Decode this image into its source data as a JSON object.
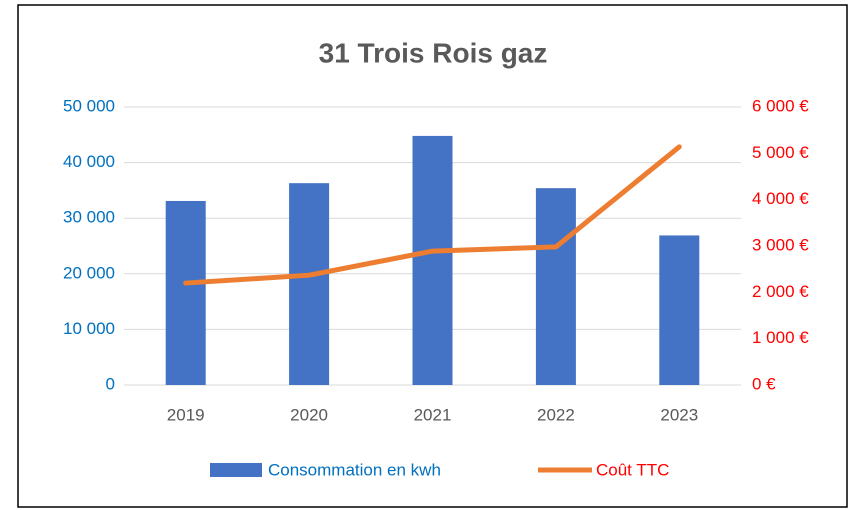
{
  "chart_data": {
    "type": "bar",
    "title": "31 Trois Rois gaz",
    "categories": [
      "2019",
      "2020",
      "2021",
      "2022",
      "2023"
    ],
    "series": [
      {
        "name": "Consommation en kwh",
        "type": "bar",
        "color": "#4472c4",
        "values": [
          33100,
          36300,
          44800,
          35400,
          26900
        ]
      },
      {
        "name": "Coût TTC",
        "type": "line",
        "axis": "y2",
        "color": "#ed7d31",
        "values": [
          2200,
          2370,
          2890,
          2980,
          5140
        ]
      }
    ],
    "ylim": [
      0,
      50000
    ],
    "yticks": [
      {
        "value": 0,
        "label": "0"
      },
      {
        "value": 10000,
        "label": "10 000"
      },
      {
        "value": 20000,
        "label": "20 000"
      },
      {
        "value": 30000,
        "label": "30 000"
      },
      {
        "value": 40000,
        "label": "40 000"
      },
      {
        "value": 50000,
        "label": "50 000"
      }
    ],
    "y2lim": [
      0,
      6000
    ],
    "y2ticks": [
      {
        "value": 0,
        "label": "0 €"
      },
      {
        "value": 1000,
        "label": "1 000 €"
      },
      {
        "value": 2000,
        "label": "2 000 €"
      },
      {
        "value": 3000,
        "label": "3 000 €"
      },
      {
        "value": 4000,
        "label": "4 000 €"
      },
      {
        "value": 5000,
        "label": "5 000 €"
      },
      {
        "value": 6000,
        "label": "6 000 €"
      }
    ],
    "y_tick_color": "#0070c0",
    "y2_tick_color": "#ff0000",
    "grid": true,
    "legend": "bottom"
  }
}
